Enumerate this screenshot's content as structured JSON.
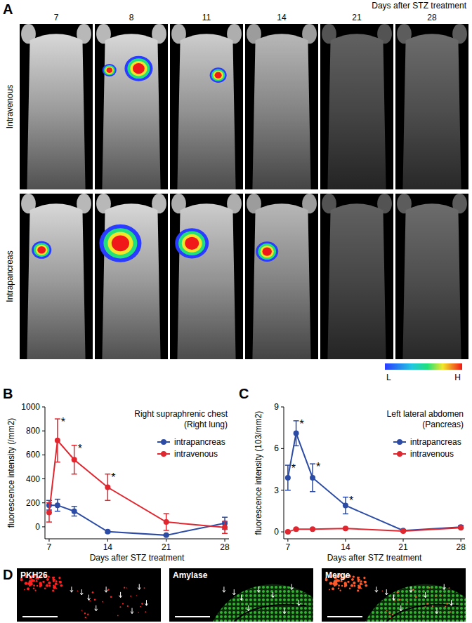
{
  "chart_data": [
    {
      "type": "line",
      "panel": "B",
      "title": "Right supraphrenic chest",
      "subtitle": "(Right lung)",
      "x_label": "Days after STZ treatment",
      "y_label": "fluorescence intensity (/mm2)",
      "x": [
        7,
        8,
        10,
        14,
        21,
        28
      ],
      "xlim": [
        6.5,
        28.5
      ],
      "xticks": [
        7,
        14,
        21,
        28
      ],
      "ylim": [
        -100,
        1000
      ],
      "yticks": [
        0,
        200,
        400,
        600,
        800,
        1000
      ],
      "legend": "upper right",
      "marker": "circle",
      "series": [
        {
          "name": "intrapancreas",
          "color": "#2b4ba5",
          "values": [
            180,
            180,
            130,
            -40,
            -70,
            30
          ],
          "errors": [
            40,
            50,
            40,
            10,
            5,
            50
          ]
        },
        {
          "name": "intravenous",
          "color": "#e0262f",
          "values": [
            120,
            720,
            560,
            330,
            40,
            -5
          ],
          "errors": [
            80,
            180,
            120,
            110,
            70,
            50
          ]
        }
      ],
      "annotations": [
        {
          "text": "*",
          "x": 8,
          "series": 1
        },
        {
          "text": "*",
          "x": 10,
          "series": 1
        },
        {
          "text": "*",
          "x": 14,
          "series": 1
        }
      ]
    },
    {
      "type": "line",
      "panel": "C",
      "title": "Left lateral abdomen",
      "subtitle": "(Pancreas)",
      "x_label": "Days after STZ treatment",
      "y_label": "fluorescence intensity (103/mm2)",
      "x": [
        7,
        8,
        10,
        14,
        21,
        28
      ],
      "xlim": [
        6.5,
        28.5
      ],
      "xticks": [
        7,
        14,
        21,
        28
      ],
      "ylim": [
        -0.5,
        9
      ],
      "yticks": [
        0,
        3,
        6,
        9
      ],
      "legend": "upper right",
      "marker": "circle",
      "series": [
        {
          "name": "intrapancreas",
          "color": "#2b4ba5",
          "values": [
            3.9,
            7.1,
            3.9,
            1.9,
            0.1,
            0.35
          ],
          "errors": [
            0.9,
            0.9,
            1.0,
            0.6,
            0.05,
            0.1
          ]
        },
        {
          "name": "intravenous",
          "color": "#e0262f",
          "values": [
            0.0,
            0.2,
            0.2,
            0.25,
            0.05,
            0.3
          ],
          "errors": [
            0.05,
            0.05,
            0.05,
            0.05,
            0.02,
            0.05
          ]
        }
      ],
      "annotations": [
        {
          "text": "*",
          "x": 7,
          "series": 0
        },
        {
          "text": "*",
          "x": 8,
          "series": 0
        },
        {
          "text": "*",
          "x": 10,
          "series": 0
        },
        {
          "text": "*",
          "x": 14,
          "series": 0
        }
      ]
    }
  ],
  "panel_a": {
    "label": "A",
    "header": "Days after STZ treatment",
    "columns": [
      "7",
      "8",
      "11",
      "14",
      "21",
      "28"
    ],
    "rows": [
      "Intravenous",
      "Intrapancreas"
    ],
    "colorbar": {
      "low": "L",
      "high": "H"
    }
  },
  "panel_d": {
    "label": "D",
    "images": [
      "PKH26",
      "Amylase",
      "Merge"
    ]
  }
}
